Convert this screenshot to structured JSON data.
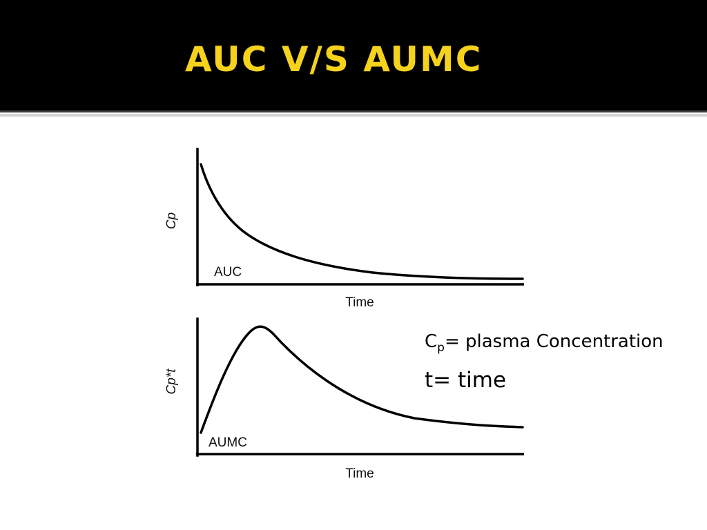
{
  "slide": {
    "title": "AUC V/S AUMC",
    "title_color": "#f5d21b",
    "header_background": "#000000"
  },
  "legend": {
    "cp_main": "C",
    "cp_sub": "p",
    "cp_rest": "= plasma Concentration",
    "t_line": "t= time"
  },
  "chart_data": [
    {
      "type": "line",
      "title": "",
      "xlabel": "Time",
      "ylabel": "Cp",
      "series": [
        {
          "name": "",
          "shape": "monoexponential decay from a high initial value toward baseline"
        }
      ],
      "annotations": [
        "AUC"
      ],
      "grid": false
    },
    {
      "type": "line",
      "title": "",
      "xlabel": "Time",
      "ylabel": "Cp*t",
      "series": [
        {
          "name": "",
          "shape": "rises from zero to an early peak, then decays slowly toward baseline"
        }
      ],
      "annotations": [
        "AUMC"
      ],
      "grid": false
    }
  ]
}
